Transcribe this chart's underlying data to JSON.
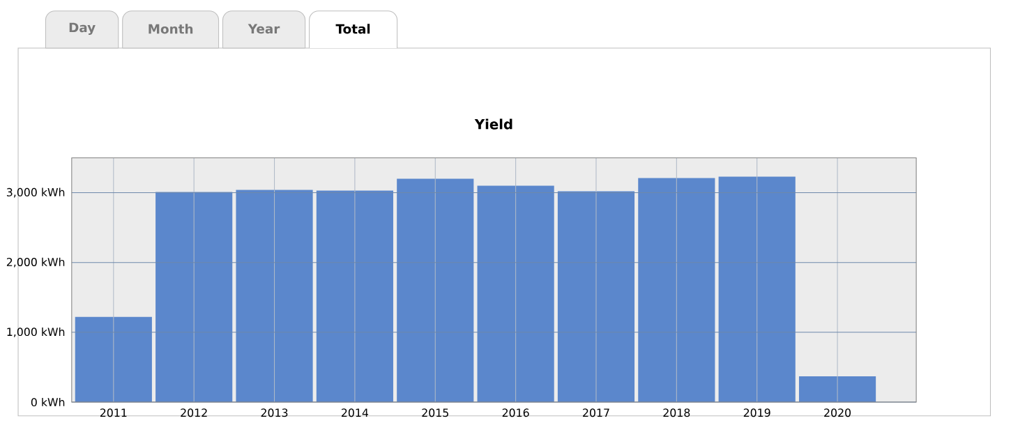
{
  "chart_data": {
    "type": "bar",
    "title": "Yield",
    "categories": [
      "2011",
      "2012",
      "2013",
      "2014",
      "2015",
      "2016",
      "2017",
      "2018",
      "2019",
      "2020"
    ],
    "values": [
      1220,
      3010,
      3040,
      3030,
      3200,
      3100,
      3020,
      3210,
      3230,
      370
    ],
    "color": "#5b87cc",
    "ylim": [
      0,
      3500
    ],
    "yticks": [
      {
        "value": 0,
        "label": "0 kWh"
      },
      {
        "value": 1000,
        "label": "1,000 kWh"
      },
      {
        "value": 2000,
        "label": "2,000 kWh"
      },
      {
        "value": 3000,
        "label": "3,000 kWh"
      }
    ],
    "grid": true,
    "annotations": [
      "Day",
      "Month",
      "Year",
      "Total"
    ]
  }
}
